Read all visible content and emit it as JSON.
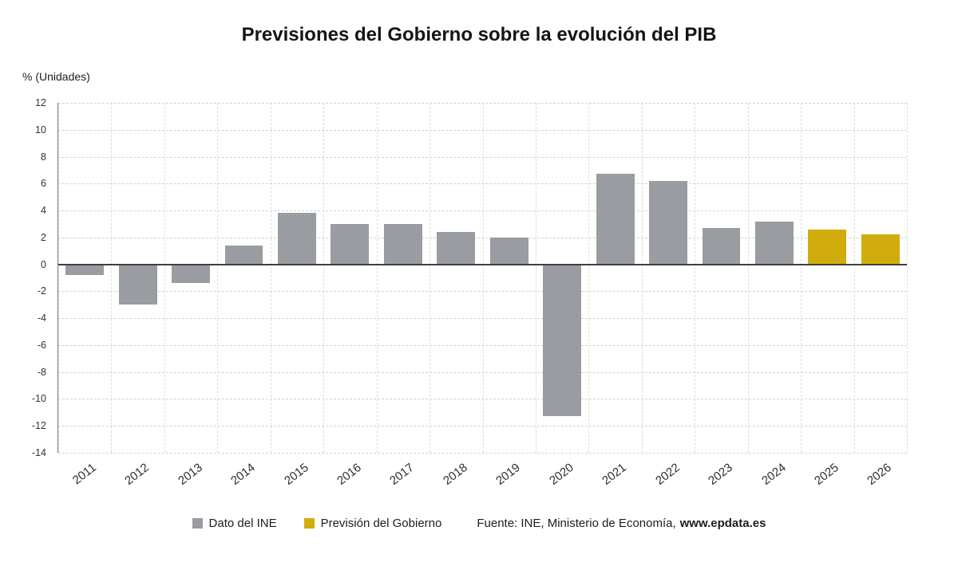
{
  "title": "Previsiones del Gobierno sobre la evolución del PIB",
  "y_axis_label": "% (Unidades)",
  "colors": {
    "ine": "#999da2",
    "forecast": "#d1ac0d",
    "grid": "#d2d2d2",
    "zero_line": "#3f3f3f",
    "text": "#2e2e2e"
  },
  "legend": {
    "series1": "Dato del INE",
    "series2": "Previsión del Gobierno",
    "source_prefix": "Fuente: INE, Ministerio de Economía,",
    "source_link": "www.epdata.es"
  },
  "chart_data": {
    "type": "bar",
    "title": "Previsiones del Gobierno sobre la evolución del PIB",
    "xlabel": "",
    "ylabel": "% (Unidades)",
    "categories": [
      "2011",
      "2012",
      "2013",
      "2014",
      "2015",
      "2016",
      "2017",
      "2018",
      "2019",
      "2020",
      "2021",
      "2022",
      "2023",
      "2024",
      "2025",
      "2026"
    ],
    "series": [
      {
        "name": "Dato del INE",
        "color_key": "ine",
        "values": [
          -0.8,
          -3.0,
          -1.4,
          1.4,
          3.8,
          3.0,
          3.0,
          2.4,
          2.0,
          -11.3,
          6.7,
          6.2,
          2.7,
          3.2,
          null,
          null
        ]
      },
      {
        "name": "Previsión del Gobierno",
        "color_key": "forecast",
        "values": [
          null,
          null,
          null,
          null,
          null,
          null,
          null,
          null,
          null,
          null,
          null,
          null,
          null,
          null,
          2.6,
          2.2
        ]
      }
    ],
    "ylim": [
      -14,
      12
    ],
    "ytick_step": 2,
    "grid": true,
    "legend_position": "bottom"
  }
}
